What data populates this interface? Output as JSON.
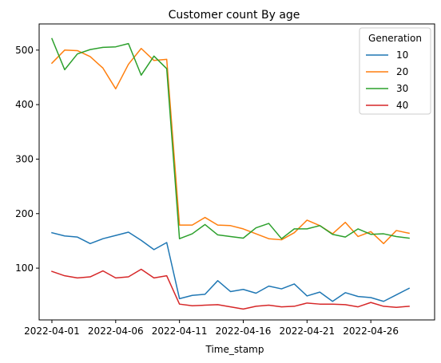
{
  "chart_data": {
    "type": "line",
    "title": "Customer count By age",
    "xlabel": "Time_stamp",
    "ylabel": "",
    "x_tick_labels": [
      "2022-04-01",
      "2022-04-06",
      "2022-04-11",
      "2022-04-16",
      "2022-04-21",
      "2022-04-26"
    ],
    "y_ticks": [
      100,
      200,
      300,
      400,
      500
    ],
    "ylim": [
      5,
      548
    ],
    "xlim": [
      "2022-03-31",
      "2022-05-01"
    ],
    "grid": false,
    "legend": {
      "title": "Generation",
      "placement": "top-right"
    },
    "x": [
      "2022-04-01",
      "2022-04-02",
      "2022-04-03",
      "2022-04-04",
      "2022-04-05",
      "2022-04-06",
      "2022-04-07",
      "2022-04-08",
      "2022-04-09",
      "2022-04-10",
      "2022-04-11",
      "2022-04-12",
      "2022-04-13",
      "2022-04-14",
      "2022-04-15",
      "2022-04-16",
      "2022-04-17",
      "2022-04-18",
      "2022-04-19",
      "2022-04-20",
      "2022-04-21",
      "2022-04-22",
      "2022-04-23",
      "2022-04-24",
      "2022-04-25",
      "2022-04-26",
      "2022-04-27",
      "2022-04-28",
      "2022-04-29",
      "2022-04-30"
    ],
    "series": [
      {
        "name": "10",
        "color": "#1f77b4",
        "values": [
          165,
          159,
          157,
          145,
          154,
          160,
          166,
          151,
          134,
          147,
          44,
          50,
          52,
          77,
          57,
          61,
          54,
          67,
          62,
          71,
          49,
          56,
          39,
          55,
          48,
          46,
          39,
          51,
          63,
          null
        ]
      },
      {
        "name": "20",
        "color": "#ff7f0e",
        "values": [
          476,
          500,
          499,
          488,
          467,
          429,
          474,
          503,
          481,
          483,
          179,
          179,
          193,
          179,
          178,
          172,
          163,
          154,
          152,
          165,
          188,
          178,
          163,
          184,
          158,
          167,
          145,
          169,
          164,
          null
        ]
      },
      {
        "name": "30",
        "color": "#2ca02c",
        "values": [
          521,
          464,
          493,
          501,
          505,
          506,
          512,
          454,
          489,
          466,
          154,
          163,
          180,
          161,
          158,
          155,
          174,
          182,
          154,
          172,
          172,
          178,
          162,
          157,
          172,
          162,
          163,
          158,
          155,
          null
        ]
      },
      {
        "name": "40",
        "color": "#d62728",
        "values": [
          94,
          86,
          82,
          84,
          95,
          82,
          84,
          98,
          82,
          86,
          34,
          31,
          32,
          33,
          29,
          25,
          30,
          32,
          29,
          30,
          36,
          34,
          34,
          33,
          29,
          37,
          30,
          28,
          30,
          null
        ]
      }
    ]
  }
}
